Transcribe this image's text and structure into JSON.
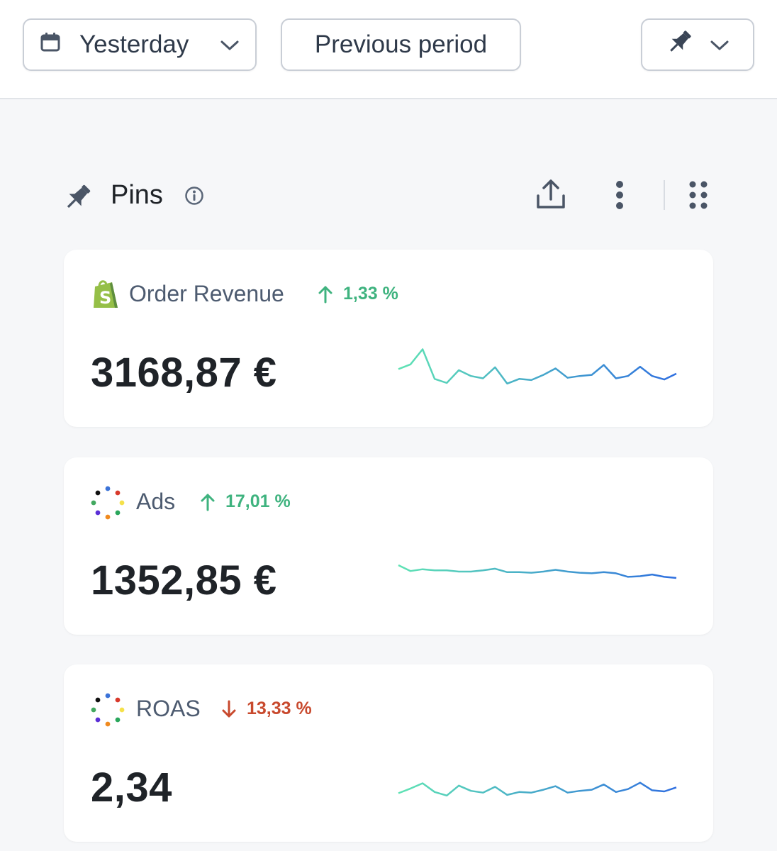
{
  "toolbar": {
    "date_range_label": "Yesterday",
    "comparison_label": "Previous period",
    "icons": [
      "calendar-icon",
      "chevron-down-icon",
      "pin-icon"
    ]
  },
  "section": {
    "title": "Pins",
    "icons": [
      "pin-icon",
      "info-icon",
      "export-icon",
      "more-vertical-icon",
      "drag-grid-icon"
    ]
  },
  "cards": [
    {
      "title": "Order Revenue",
      "source_icon": "shopify-icon",
      "delta": "1,33 %",
      "delta_direction": "up",
      "value": "3168,87 €",
      "trend": [
        52,
        60,
        86,
        35,
        28,
        50,
        40,
        36,
        55,
        27,
        35,
        33,
        42,
        53,
        37,
        40,
        42,
        59,
        36,
        40,
        56,
        40,
        34,
        44
      ]
    },
    {
      "title": "Ads",
      "source_icon": "multi-color-dots-icon",
      "delta": "17,01 %",
      "delta_direction": "up",
      "value": "1352,85 €",
      "trend": [
        72,
        62,
        65,
        63,
        63,
        61,
        61,
        63,
        66,
        60,
        60,
        59,
        61,
        64,
        61,
        59,
        58,
        60,
        58,
        52,
        53,
        56,
        52,
        50
      ]
    },
    {
      "title": "ROAS",
      "source_icon": "multi-color-dots-icon",
      "delta": "13,33 %",
      "delta_direction": "down",
      "value": "2,34",
      "trend": [
        36,
        44,
        53,
        38,
        32,
        49,
        40,
        37,
        47,
        33,
        38,
        37,
        42,
        48,
        37,
        40,
        42,
        51,
        38,
        43,
        54,
        41,
        39,
        46
      ]
    }
  ],
  "colors": {
    "delta_up": "#3fb37f",
    "delta_down": "#c8492d",
    "spark_start": "#5fe3b4",
    "spark_end": "#2f6fe0",
    "shopify_green": "#95bf47"
  }
}
